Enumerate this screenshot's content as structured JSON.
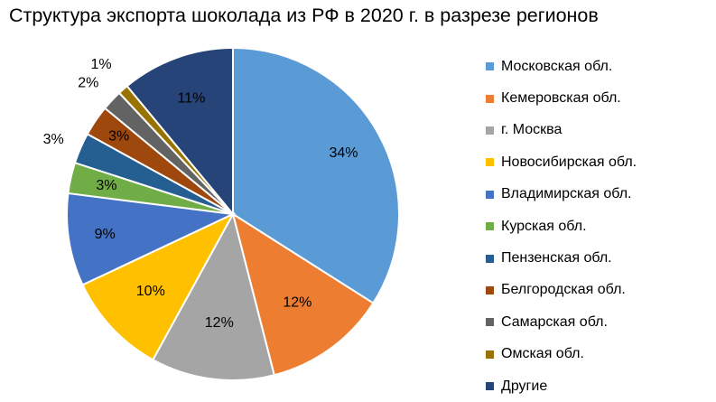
{
  "chart_data": {
    "type": "pie",
    "title": "Структура экспорта шоколада из РФ в 2020 г. в разрезе регионов",
    "legend_position": "right",
    "slices": [
      {
        "name": "Московская обл.",
        "value": 34,
        "label": "34%",
        "color": "#5B9BD5"
      },
      {
        "name": "Кемеровская обл.",
        "value": 12,
        "label": "12%",
        "color": "#ED7D31"
      },
      {
        "name": "г. Москва",
        "value": 12,
        "label": "12%",
        "color": "#A5A5A5"
      },
      {
        "name": "Новосибирская обл.",
        "value": 10,
        "label": "10%",
        "color": "#FFC000"
      },
      {
        "name": "Владимирская обл.",
        "value": 9,
        "label": "9%",
        "color": "#4472C4"
      },
      {
        "name": "Курская обл.",
        "value": 3,
        "label": "3%",
        "color": "#70AD47"
      },
      {
        "name": "Пензенская обл.",
        "value": 3,
        "label": "3%",
        "color": "#255E91"
      },
      {
        "name": "Белгородская обл.",
        "value": 3,
        "label": "3%",
        "color": "#9E480E"
      },
      {
        "name": "Самарская обл.",
        "value": 2,
        "label": "2%",
        "color": "#636363"
      },
      {
        "name": "Омская обл.",
        "value": 1,
        "label": "1%",
        "color": "#997300"
      },
      {
        "name": "Другие",
        "value": 11,
        "label": "11%",
        "color": "#264478"
      }
    ]
  }
}
